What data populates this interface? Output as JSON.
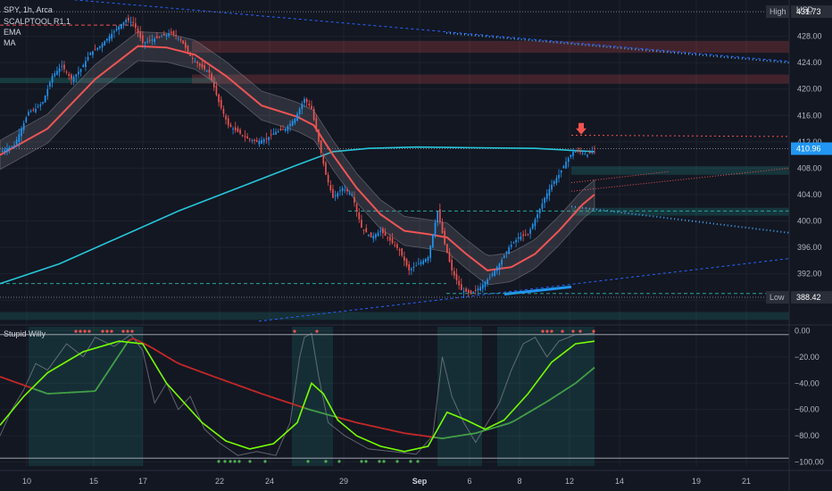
{
  "header": {
    "symbol_line": "SPY, 1h, Arca",
    "currency": "USD",
    "indicators": [
      "SCALPTOOL R1.1",
      "EMA",
      "MA"
    ],
    "oscillator_name": "Stupid Willy"
  },
  "colors": {
    "background": "#131722",
    "up": "#2196f3",
    "down": "#ef5350",
    "ema": "#f05454",
    "ma": "#26c6da",
    "willy_fast": "#7cd14a",
    "willy_slow": "#c62828",
    "willy_signal": "#76ff03"
  },
  "chart_data": [
    {
      "type": "candlestick",
      "title": "SPY, 1h, Arca",
      "x_labels": [
        "10",
        "15",
        "17",
        "22",
        "24",
        "29",
        "Sep",
        "6",
        "8",
        "12",
        "14",
        "19",
        "21"
      ],
      "y_ticks": [
        388,
        392,
        396,
        400,
        404,
        408,
        412,
        416,
        420,
        424,
        428
      ],
      "y_tick_labels": [
        "388.00",
        "392.00",
        "396.00",
        "400.00",
        "404.00",
        "408.00",
        "412.00",
        "416.00",
        "420.00",
        "424.00",
        "428.00"
      ],
      "ylim": [
        384.5,
        433.5
      ],
      "grid": true,
      "price_markers": [
        {
          "label": "High",
          "value": 431.73
        },
        {
          "label": "",
          "value": 410.96
        },
        {
          "label": "Low",
          "value": 388.42
        }
      ],
      "price_marker_texts": [
        "431.73",
        "410.96",
        "388.42"
      ],
      "close_path": [
        [
          0,
          410.5
        ],
        [
          3,
          411.0
        ],
        [
          6,
          411.5
        ],
        [
          9,
          414.0
        ],
        [
          12,
          416.5
        ],
        [
          15,
          417.0
        ],
        [
          18,
          418.0
        ],
        [
          22,
          422.0
        ],
        [
          26,
          423.5
        ],
        [
          30,
          421.5
        ],
        [
          34,
          423.0
        ],
        [
          38,
          425.5
        ],
        [
          42,
          426.5
        ],
        [
          46,
          428.0
        ],
        [
          50,
          429.5
        ],
        [
          53,
          430.5
        ],
        [
          56,
          430.0
        ],
        [
          60,
          427.0
        ],
        [
          64,
          427.5
        ],
        [
          68,
          428.0
        ],
        [
          72,
          428.5
        ],
        [
          76,
          427.5
        ],
        [
          80,
          425.0
        ],
        [
          84,
          423.5
        ],
        [
          88,
          422.5
        ],
        [
          92,
          418.0
        ],
        [
          96,
          414.5
        ],
        [
          100,
          413.5
        ],
        [
          104,
          412.5
        ],
        [
          108,
          412.0
        ],
        [
          112,
          412.5
        ],
        [
          116,
          413.5
        ],
        [
          120,
          414.0
        ],
        [
          124,
          415.5
        ],
        [
          128,
          418.5
        ],
        [
          131,
          417.0
        ],
        [
          134,
          412.0
        ],
        [
          137,
          407.0
        ],
        [
          140,
          403.5
        ],
        [
          144,
          405.0
        ],
        [
          148,
          404.0
        ],
        [
          152,
          399.0
        ],
        [
          156,
          397.5
        ],
        [
          160,
          398.5
        ],
        [
          164,
          397.0
        ],
        [
          168,
          395.5
        ],
        [
          172,
          392.5
        ],
        [
          176,
          393.5
        ],
        [
          180,
          394.5
        ],
        [
          184,
          401.5
        ],
        [
          187,
          396.5
        ],
        [
          190,
          392.5
        ],
        [
          194,
          389.5
        ],
        [
          198,
          389.0
        ],
        [
          202,
          390.0
        ],
        [
          206,
          391.5
        ],
        [
          210,
          393.5
        ],
        [
          214,
          396.0
        ],
        [
          218,
          397.5
        ],
        [
          222,
          398.0
        ],
        [
          226,
          401.0
        ],
        [
          229,
          403.5
        ],
        [
          232,
          405.5
        ],
        [
          235,
          407.0
        ],
        [
          238,
          409.0
        ],
        [
          241,
          410.5
        ],
        [
          244,
          410.5
        ],
        [
          247,
          410.0
        ],
        [
          250,
          410.96
        ]
      ],
      "ema": [
        [
          0,
          410.0
        ],
        [
          20,
          414.0
        ],
        [
          40,
          421.5
        ],
        [
          58,
          426.5
        ],
        [
          70,
          426.3
        ],
        [
          82,
          425.2
        ],
        [
          95,
          422.0
        ],
        [
          110,
          417.5
        ],
        [
          125,
          415.8
        ],
        [
          132,
          414.5
        ],
        [
          140,
          410.0
        ],
        [
          150,
          405.0
        ],
        [
          160,
          401.0
        ],
        [
          170,
          398.5
        ],
        [
          180,
          398.0
        ],
        [
          188,
          397.5
        ],
        [
          196,
          395.0
        ],
        [
          205,
          392.5
        ],
        [
          215,
          393.0
        ],
        [
          225,
          395.0
        ],
        [
          235,
          398.5
        ],
        [
          245,
          402.5
        ],
        [
          250,
          404.0
        ]
      ],
      "ma": [
        [
          0,
          390.5
        ],
        [
          25,
          393.5
        ],
        [
          50,
          397.5
        ],
        [
          75,
          401.5
        ],
        [
          100,
          405.0
        ],
        [
          125,
          408.5
        ],
        [
          140,
          410.5
        ],
        [
          155,
          411.0
        ],
        [
          175,
          411.2
        ],
        [
          200,
          411.1
        ],
        [
          225,
          411.0
        ],
        [
          250,
          410.5
        ]
      ],
      "annotations": [
        {
          "kind": "resistance_zone",
          "from": 425.5,
          "to": 427.3
        },
        {
          "kind": "resistance_zone",
          "from": 420.8,
          "to": 422.2
        },
        {
          "kind": "support_zone",
          "from": 407.0,
          "to": 408.3
        },
        {
          "kind": "support_zone",
          "from": 400.8,
          "to": 402.0
        },
        {
          "kind": "arrow_down",
          "value": 413.5
        }
      ]
    },
    {
      "type": "line",
      "title": "Stupid Willy",
      "y_ticks": [
        0,
        -20,
        -40,
        -60,
        -80,
        -100
      ],
      "y_tick_labels": [
        "0.00",
        "−20.00",
        "−40.00",
        "−60.00",
        "−80.00",
        "−100.00"
      ],
      "ylim": [
        -103,
        3
      ],
      "series": [
        {
          "role": "fast",
          "values": [
            [
              0,
              -72
            ],
            [
              10,
              -50
            ],
            [
              20,
              -32
            ],
            [
              35,
              -16
            ],
            [
              50,
              -8
            ],
            [
              60,
              -10
            ],
            [
              70,
              -40
            ],
            [
              85,
              -70
            ],
            [
              95,
              -84
            ],
            [
              105,
              -90
            ],
            [
              115,
              -86
            ],
            [
              125,
              -70
            ],
            [
              131,
              -40
            ],
            [
              136,
              -48
            ],
            [
              142,
              -68
            ],
            [
              150,
              -80
            ],
            [
              160,
              -88
            ],
            [
              170,
              -92
            ],
            [
              180,
              -88
            ],
            [
              188,
              -62
            ],
            [
              196,
              -68
            ],
            [
              204,
              -75
            ],
            [
              212,
              -68
            ],
            [
              222,
              -48
            ],
            [
              232,
              -24
            ],
            [
              242,
              -10
            ],
            [
              250,
              -8
            ]
          ]
        },
        {
          "role": "slow",
          "values": [
            [
              0,
              -35
            ],
            [
              20,
              -48
            ],
            [
              40,
              -46
            ],
            [
              55,
              -5
            ],
            [
              63,
              -12
            ],
            [
              75,
              -25
            ],
            [
              90,
              -35
            ],
            [
              110,
              -48
            ],
            [
              130,
              -60
            ],
            [
              150,
              -70
            ],
            [
              170,
              -78
            ],
            [
              186,
              -82
            ],
            [
              200,
              -78
            ],
            [
              215,
              -70
            ],
            [
              230,
              -54
            ],
            [
              242,
              -40
            ],
            [
              250,
              -28
            ]
          ]
        },
        {
          "role": "raw",
          "values": [
            [
              0,
              -80
            ],
            [
              5,
              -60
            ],
            [
              10,
              -45
            ],
            [
              15,
              -25
            ],
            [
              20,
              -30
            ],
            [
              28,
              -10
            ],
            [
              35,
              -20
            ],
            [
              40,
              -5
            ],
            [
              48,
              -12
            ],
            [
              55,
              -3
            ],
            [
              60,
              -15
            ],
            [
              65,
              -55
            ],
            [
              70,
              -40
            ],
            [
              75,
              -60
            ],
            [
              80,
              -50
            ],
            [
              86,
              -75
            ],
            [
              92,
              -85
            ],
            [
              100,
              -95
            ],
            [
              108,
              -92
            ],
            [
              116,
              -95
            ],
            [
              122,
              -70
            ],
            [
              126,
              -20
            ],
            [
              128,
              -5
            ],
            [
              131,
              -2
            ],
            [
              134,
              -35
            ],
            [
              138,
              -70
            ],
            [
              145,
              -80
            ],
            [
              155,
              -90
            ],
            [
              165,
              -92
            ],
            [
              175,
              -94
            ],
            [
              182,
              -80
            ],
            [
              186,
              -20
            ],
            [
              190,
              -50
            ],
            [
              195,
              -70
            ],
            [
              200,
              -85
            ],
            [
              205,
              -70
            ],
            [
              210,
              -55
            ],
            [
              215,
              -30
            ],
            [
              220,
              -10
            ],
            [
              225,
              -5
            ],
            [
              230,
              -20
            ],
            [
              235,
              -8
            ],
            [
              242,
              -3
            ],
            [
              250,
              -2
            ]
          ]
        }
      ]
    }
  ]
}
